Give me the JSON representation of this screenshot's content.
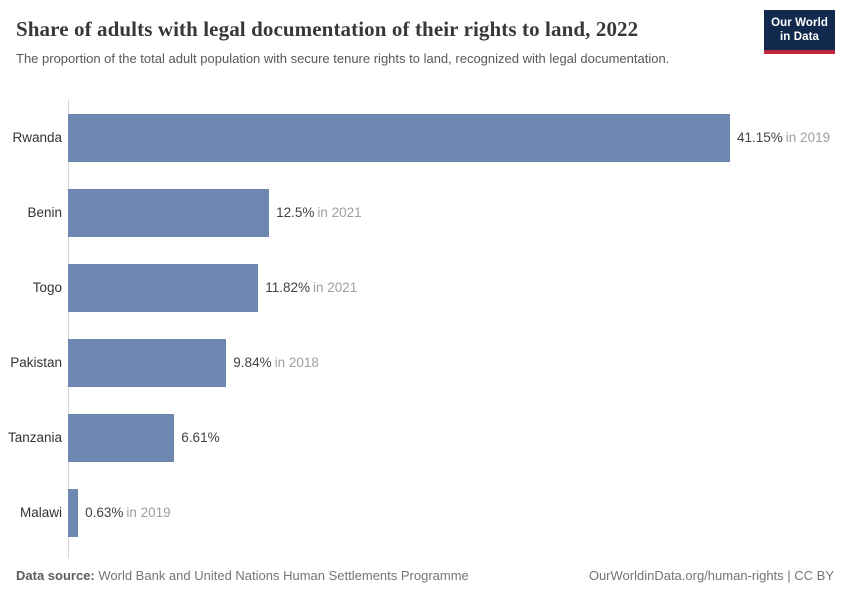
{
  "header": {
    "title": "Share of adults with legal documentation of their rights to land, 2022",
    "subtitle": "The proportion of the total adult population with secure tenure rights to land, recognized with legal documentation."
  },
  "logo": {
    "line1": "Our World",
    "line2": "in Data",
    "background_color": "#12294e",
    "accent_color": "#c0273a"
  },
  "chart_data": {
    "type": "bar",
    "orientation": "horizontal",
    "title": "Share of adults with legal documentation of their rights to land, 2022",
    "xlabel": "",
    "ylabel": "",
    "xlim": [
      0,
      41.15
    ],
    "grid": false,
    "legend": false,
    "bar_color": "#6e87b1",
    "categories": [
      "Rwanda",
      "Benin",
      "Togo",
      "Pakistan",
      "Tanzania",
      "Malawi"
    ],
    "values": [
      41.15,
      12.5,
      11.82,
      9.84,
      6.61,
      0.63
    ],
    "rows": [
      {
        "category": "Rwanda",
        "value": 41.15,
        "value_label": "41.15%",
        "year_label": "in 2019"
      },
      {
        "category": "Benin",
        "value": 12.5,
        "value_label": "12.5%",
        "year_label": "in 2021"
      },
      {
        "category": "Togo",
        "value": 11.82,
        "value_label": "11.82%",
        "year_label": "in 2021"
      },
      {
        "category": "Pakistan",
        "value": 9.84,
        "value_label": "9.84%",
        "year_label": "in 2018"
      },
      {
        "category": "Tanzania",
        "value": 6.61,
        "value_label": "6.61%",
        "year_label": ""
      },
      {
        "category": "Malawi",
        "value": 0.63,
        "value_label": "0.63%",
        "year_label": "in 2019"
      }
    ]
  },
  "footer": {
    "source_label": "Data source:",
    "source_value": " World Bank and United Nations Human Settlements Programme",
    "credit": "OurWorldinData.org/human-rights | CC BY"
  }
}
